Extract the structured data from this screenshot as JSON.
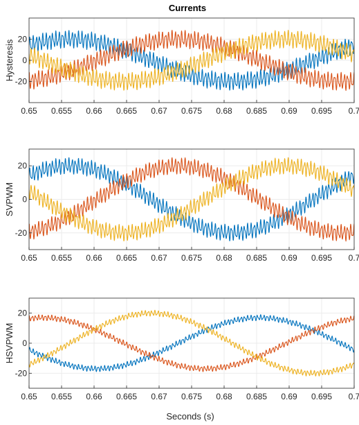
{
  "figure": {
    "title": "Currents",
    "xlabel": "Seconds (s)"
  },
  "colors": {
    "phase_a": "#0072bd",
    "phase_b": "#d95319",
    "phase_c": "#edb120",
    "axis": "#262626",
    "grid": "#ebebeb"
  },
  "chart_data": [
    {
      "type": "line",
      "ylabel": "Hysteresis",
      "xlim": [
        0.65,
        0.7
      ],
      "ylim": [
        -40,
        40
      ],
      "xticks": [
        "0.65",
        "0.655",
        "0.66",
        "0.665",
        "0.67",
        "0.675",
        "0.68",
        "0.685",
        "0.69",
        "0.695",
        "0.7"
      ],
      "yticks": [
        "-20",
        "0",
        "20"
      ],
      "ytick_values": [
        -20,
        0,
        20
      ],
      "grid": true,
      "series": [
        {
          "color": "#0072bd",
          "amplitude": 20,
          "phase_deg": 45,
          "ripple": 6
        },
        {
          "color": "#d95319",
          "amplitude": 20,
          "phase_deg": -75,
          "ripple": 6
        },
        {
          "color": "#edb120",
          "amplitude": 20,
          "phase_deg": 165,
          "ripple": 6
        }
      ]
    },
    {
      "type": "line",
      "ylabel": "SVPWM",
      "xlim": [
        0.65,
        0.7
      ],
      "ylim": [
        -30,
        30
      ],
      "xticks": [
        "0.65",
        "0.655",
        "0.66",
        "0.665",
        "0.67",
        "0.675",
        "0.68",
        "0.685",
        "0.69",
        "0.695",
        "0.7"
      ],
      "yticks": [
        "-20",
        "0",
        "20"
      ],
      "ytick_values": [
        -20,
        0,
        20
      ],
      "grid": true,
      "series": [
        {
          "color": "#0072bd",
          "amplitude": 20,
          "phase_deg": 45,
          "ripple": 3.5
        },
        {
          "color": "#d95319",
          "amplitude": 20,
          "phase_deg": -75,
          "ripple": 3.5
        },
        {
          "color": "#edb120",
          "amplitude": 20,
          "phase_deg": 165,
          "ripple": 3.5
        }
      ]
    },
    {
      "type": "line",
      "ylabel": "HSVPWM",
      "xlim": [
        0.65,
        0.7
      ],
      "ylim": [
        -30,
        30
      ],
      "xticks": [
        "0.65",
        "0.655",
        "0.66",
        "0.665",
        "0.67",
        "0.675",
        "0.68",
        "0.685",
        "0.69",
        "0.695",
        "0.7"
      ],
      "yticks": [
        "-20",
        "0",
        "20"
      ],
      "ytick_values": [
        -20,
        0,
        20
      ],
      "grid": true,
      "series": [
        {
          "color": "#0072bd",
          "amplitude": 17,
          "phase_deg": 195,
          "ripple": 1.4
        },
        {
          "color": "#d95319",
          "amplitude": 17,
          "phase_deg": 75,
          "ripple": 1.4
        },
        {
          "color": "#edb120",
          "amplitude": 20,
          "phase_deg": -45,
          "ripple": 1.4
        }
      ]
    }
  ]
}
